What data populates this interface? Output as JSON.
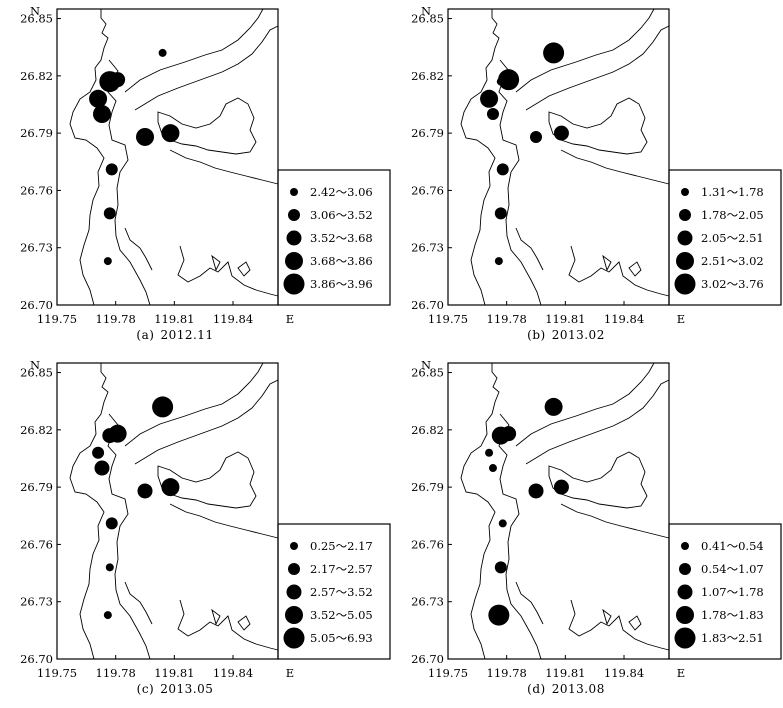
{
  "figure": {
    "x_ticks": [
      "119.75",
      "119.78",
      "119.81",
      "119.84"
    ],
    "x_tick_values": [
      119.75,
      119.78,
      119.81,
      119.84
    ],
    "y_ticks": [
      "26.85",
      "26.82",
      "26.79",
      "26.76",
      "26.73",
      "26.70"
    ],
    "y_tick_values": [
      26.85,
      26.82,
      26.79,
      26.76,
      26.73,
      26.7
    ],
    "x_axis_letter": "E",
    "y_axis_letter": "N",
    "x_range": [
      119.75,
      119.863
    ],
    "y_range": [
      26.7,
      26.855
    ],
    "colors": {
      "ink": "#000000",
      "paper": "#ffffff"
    },
    "stations": [
      [
        119.804,
        26.832
      ],
      [
        119.781,
        26.818
      ],
      [
        119.777,
        26.817
      ],
      [
        119.771,
        26.808
      ],
      [
        119.773,
        26.8
      ],
      [
        119.795,
        26.788
      ],
      [
        119.808,
        26.79
      ],
      [
        119.778,
        26.771
      ],
      [
        119.777,
        26.748
      ],
      [
        119.776,
        26.723
      ]
    ]
  },
  "panels": [
    {
      "part": "(a)",
      "date": "2012.11",
      "legend": [
        "2.42～3.06",
        "3.06～3.52",
        "3.52～3.68",
        "3.68～3.86",
        "3.86～3.96"
      ],
      "class_sizes": [
        1,
        2,
        3,
        4,
        5
      ],
      "station_classes": [
        1,
        3,
        5,
        4,
        4,
        4,
        4,
        2,
        2,
        1
      ]
    },
    {
      "part": "(b)",
      "date": "2013.02",
      "legend": [
        "1.31～1.78",
        "1.78～2.05",
        "2.05～2.51",
        "2.51～3.02",
        "3.02～3.76"
      ],
      "class_sizes": [
        1,
        2,
        3,
        4,
        5
      ],
      "station_classes": [
        5,
        5,
        1,
        4,
        2,
        2,
        3,
        2,
        2,
        1
      ]
    },
    {
      "part": "(c)",
      "date": "2013.05",
      "legend": [
        "0.25～2.17",
        "2.17～2.57",
        "2.57～3.52",
        "3.52～5.05",
        "5.05～6.93"
      ],
      "class_sizes": [
        1,
        2,
        3,
        4,
        5
      ],
      "station_classes": [
        5,
        4,
        3,
        2,
        3,
        3,
        4,
        2,
        1,
        1
      ]
    },
    {
      "part": "(d)",
      "date": "2013.08",
      "legend": [
        "0.41～0.54",
        "0.54～1.07",
        "1.07～1.78",
        "1.78～1.83",
        "1.83～2.51"
      ],
      "class_sizes": [
        1,
        2,
        3,
        4,
        5
      ],
      "station_classes": [
        4,
        3,
        4,
        1,
        1,
        3,
        3,
        1,
        2,
        5
      ]
    }
  ]
}
